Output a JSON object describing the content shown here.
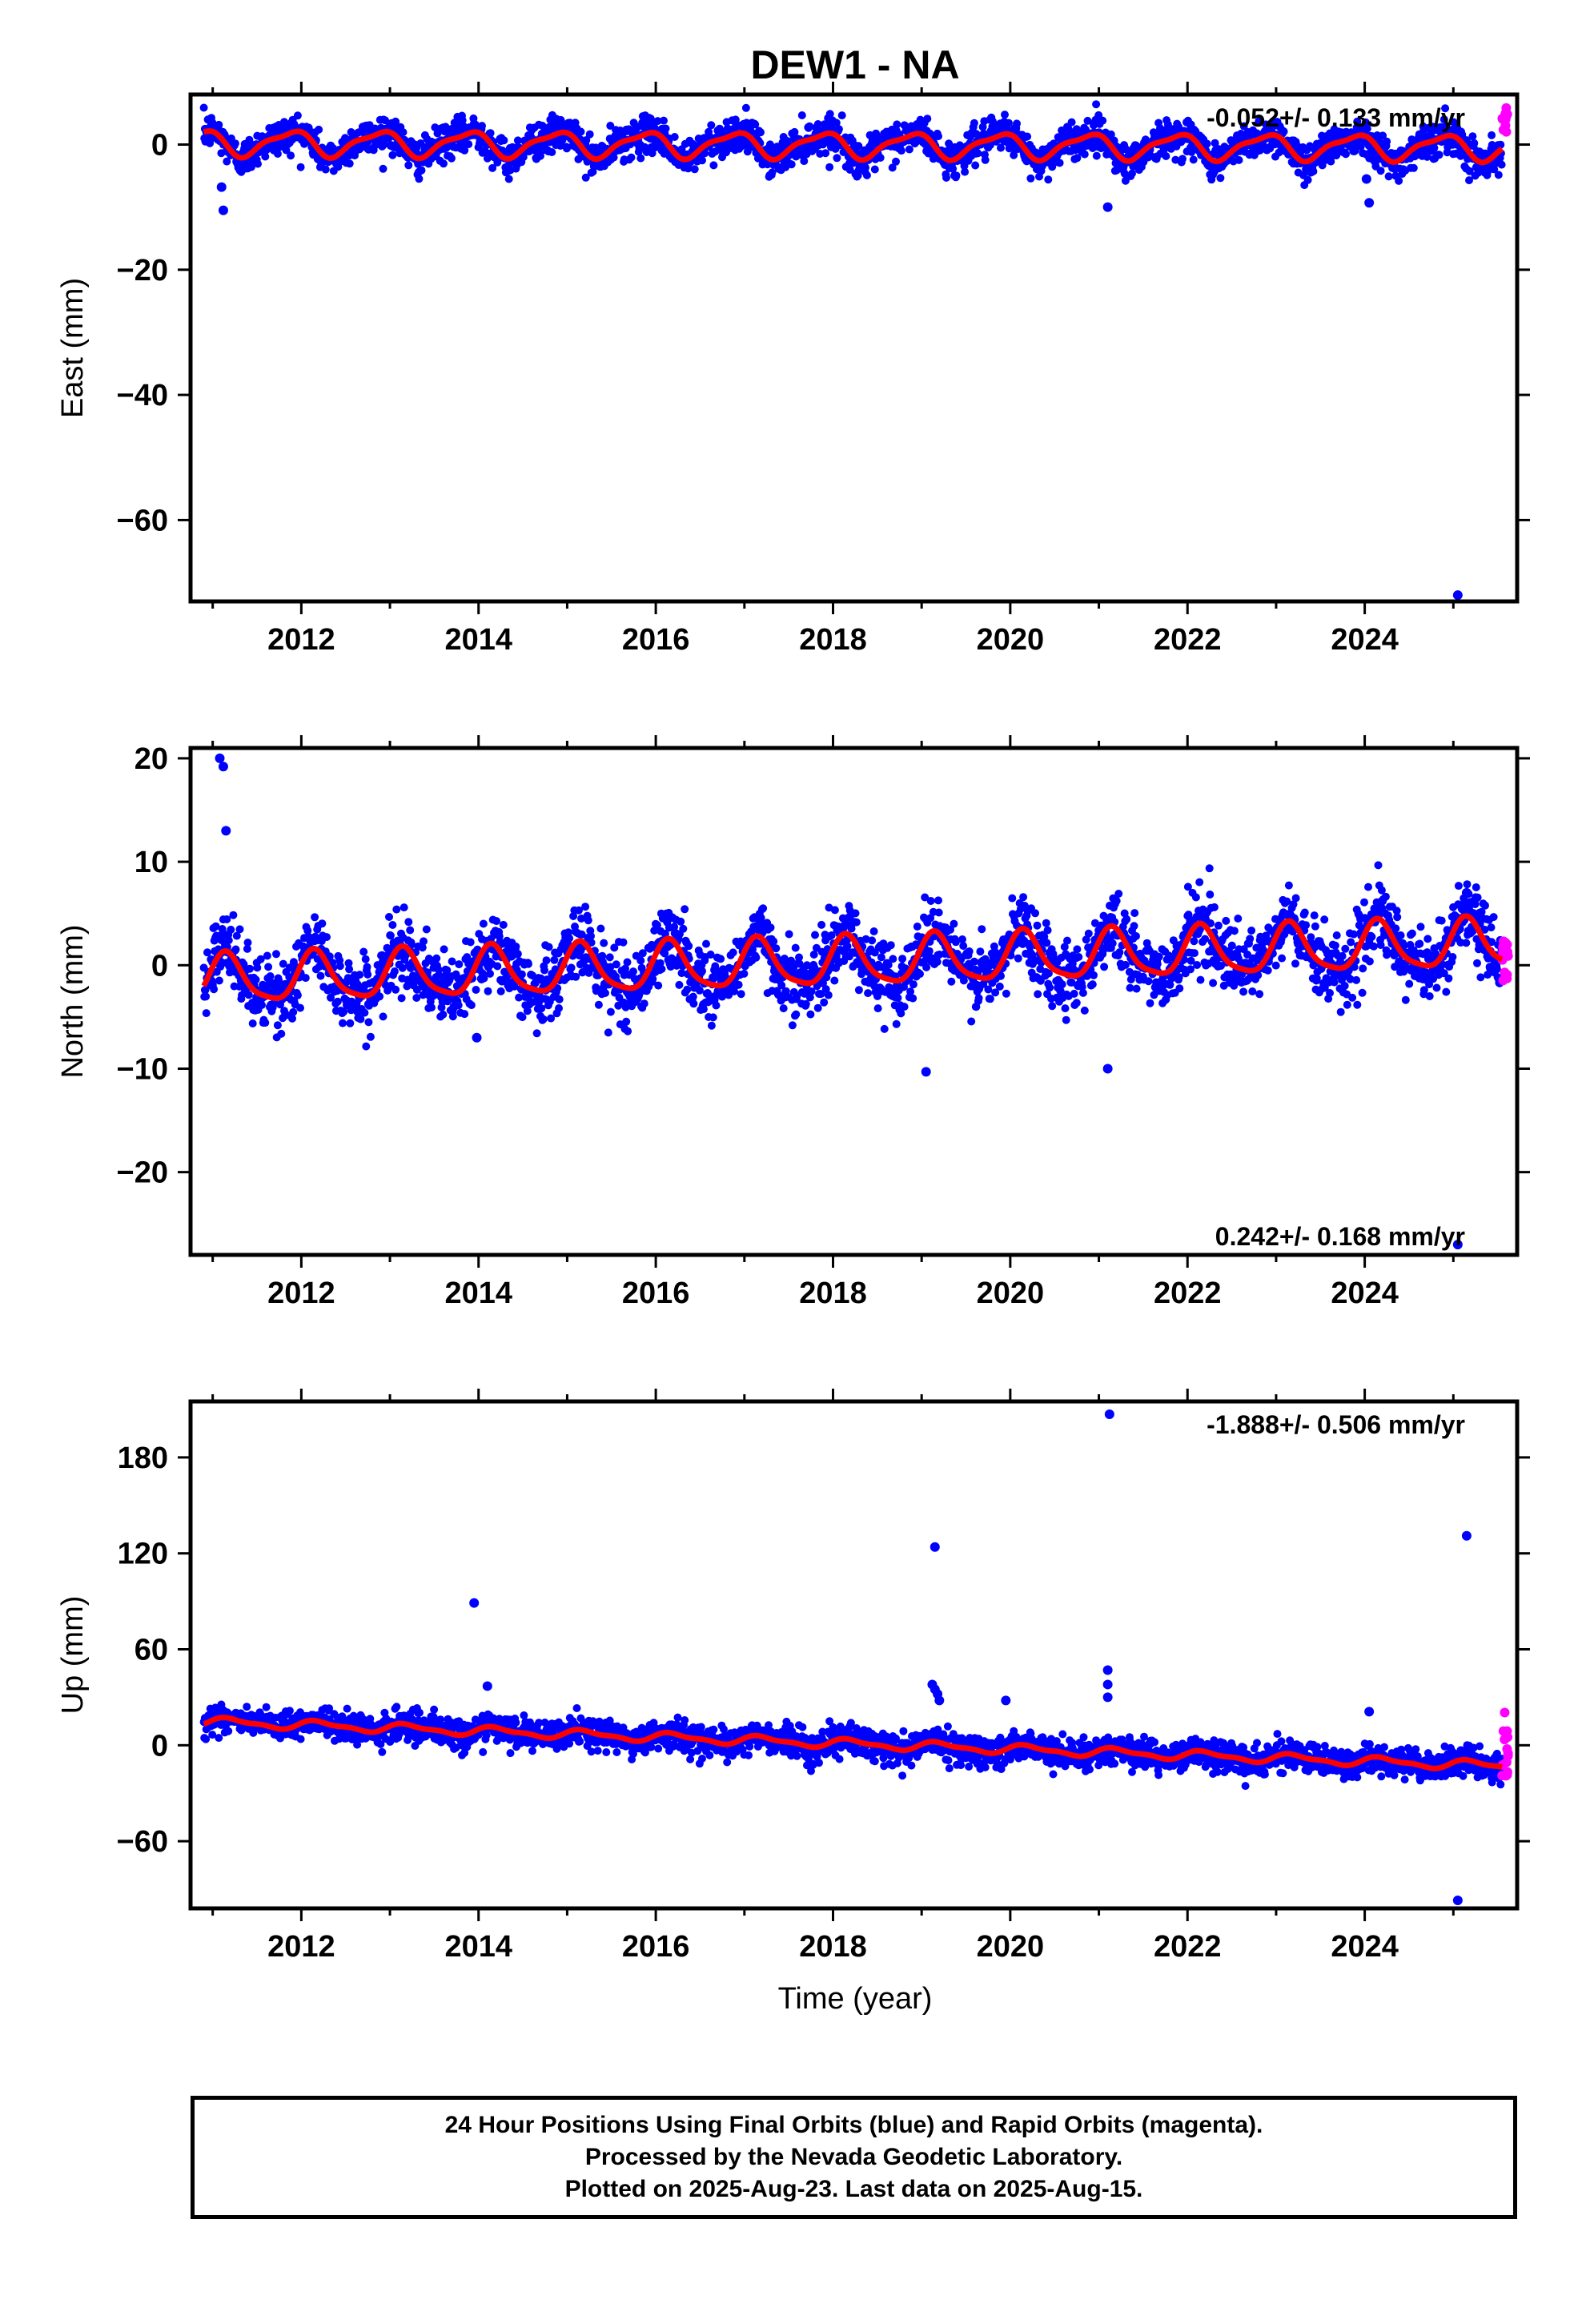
{
  "title": "DEW1 - NA",
  "xlabel": "Time (year)",
  "colors": {
    "final": "#0000ff",
    "rapid": "#ff00ff",
    "model": "#ff0000",
    "frame": "#000000"
  },
  "chart_data": [
    {
      "type": "scatter",
      "component": "east",
      "ylabel": "East (mm)",
      "rate_label": "-0.052+/- 0.133 mm/yr",
      "xlim": [
        2010.75,
        2025.72
      ],
      "ylim": [
        -73,
        8
      ],
      "yticks": [
        0,
        -20,
        -40,
        -60
      ],
      "xticks": [
        2012,
        2014,
        2016,
        2018,
        2020,
        2022,
        2024
      ],
      "series": [
        {
          "kind": "final",
          "model": {
            "offset": 0.3,
            "rate": -0.052,
            "annual_amp": 1.9,
            "annual_phase": 2.4,
            "semi_amp": 0.6,
            "semi_phase": 1.0
          },
          "scatter_sd": 1.4,
          "x_range": [
            2010.9,
            2025.55
          ]
        },
        {
          "kind": "rapid",
          "x_range": [
            2025.55,
            2025.62
          ],
          "y_range": [
            2.0,
            6.0
          ]
        }
      ],
      "outliers": [
        {
          "x": 2011.1,
          "y": -6.8
        },
        {
          "x": 2011.12,
          "y": -10.5
        },
        {
          "x": 2021.1,
          "y": -10.0
        },
        {
          "x": 2024.05,
          "y": -9.3
        },
        {
          "x": 2024.02,
          "y": -5.5
        },
        {
          "x": 2025.05,
          "y": -72
        }
      ]
    },
    {
      "type": "scatter",
      "component": "north",
      "ylabel": "North (mm)",
      "rate_label": "0.242+/- 0.168 mm/yr",
      "xlim": [
        2010.75,
        2025.72
      ],
      "ylim": [
        -28,
        21
      ],
      "yticks": [
        20,
        10,
        0,
        -10,
        -20
      ],
      "xticks": [
        2012,
        2014,
        2016,
        2018,
        2020,
        2022,
        2024
      ],
      "series": [
        {
          "kind": "final",
          "model": {
            "offset": -1.5,
            "rate": 0.242,
            "annual_amp": 2.3,
            "annual_phase": 0.6,
            "semi_amp": 0.5,
            "semi_phase": 0.0
          },
          "scatter_sd": 1.7,
          "x_range": [
            2010.9,
            2025.55
          ]
        },
        {
          "kind": "rapid",
          "x_range": [
            2025.55,
            2025.62
          ],
          "y_range": [
            -2.0,
            4.0
          ]
        }
      ],
      "outliers": [
        {
          "x": 2011.08,
          "y": 20.0
        },
        {
          "x": 2011.12,
          "y": 19.2
        },
        {
          "x": 2011.15,
          "y": 13.0
        },
        {
          "x": 2013.98,
          "y": -7.0
        },
        {
          "x": 2019.05,
          "y": -10.3
        },
        {
          "x": 2021.1,
          "y": -10.0
        },
        {
          "x": 2025.05,
          "y": -27
        },
        {
          "x": 2025.15,
          "y": 7.0
        }
      ]
    },
    {
      "type": "scatter",
      "component": "up",
      "ylabel": "Up (mm)",
      "rate_label": "-1.888+/- 0.506 mm/yr",
      "xlim": [
        2010.75,
        2025.72
      ],
      "ylim": [
        -102,
        215
      ],
      "yticks": [
        180,
        120,
        60,
        0,
        -60
      ],
      "xticks": [
        2012,
        2014,
        2016,
        2018,
        2020,
        2022,
        2024
      ],
      "series": [
        {
          "kind": "final",
          "model": {
            "offset": 15.0,
            "rate": -1.888,
            "annual_amp": 2.5,
            "annual_phase": 0.3,
            "semi_amp": 1.0,
            "semi_phase": 0.5
          },
          "scatter_sd": 4.5,
          "x_range": [
            2010.9,
            2025.55
          ]
        },
        {
          "kind": "rapid",
          "x_range": [
            2025.55,
            2025.62
          ],
          "y_range": [
            -22.0,
            22.0
          ]
        }
      ],
      "outliers": [
        {
          "x": 2013.95,
          "y": 89
        },
        {
          "x": 2014.1,
          "y": 37
        },
        {
          "x": 2019.15,
          "y": 124
        },
        {
          "x": 2019.12,
          "y": 38
        },
        {
          "x": 2019.15,
          "y": 35
        },
        {
          "x": 2019.18,
          "y": 32
        },
        {
          "x": 2019.2,
          "y": 28
        },
        {
          "x": 2021.1,
          "y": 47
        },
        {
          "x": 2021.1,
          "y": 38
        },
        {
          "x": 2021.1,
          "y": 30
        },
        {
          "x": 2021.12,
          "y": 207
        },
        {
          "x": 2025.05,
          "y": -97
        },
        {
          "x": 2025.15,
          "y": 131
        },
        {
          "x": 2024.05,
          "y": 21
        },
        {
          "x": 2019.95,
          "y": 28
        }
      ]
    }
  ],
  "footer": {
    "line1": "24 Hour Positions Using Final Orbits (blue) and Rapid Orbits (magenta).",
    "line2": "Processed by the Nevada Geodetic Laboratory.",
    "line3": "Plotted on 2025-Aug-23. Last data on 2025-Aug-15."
  }
}
